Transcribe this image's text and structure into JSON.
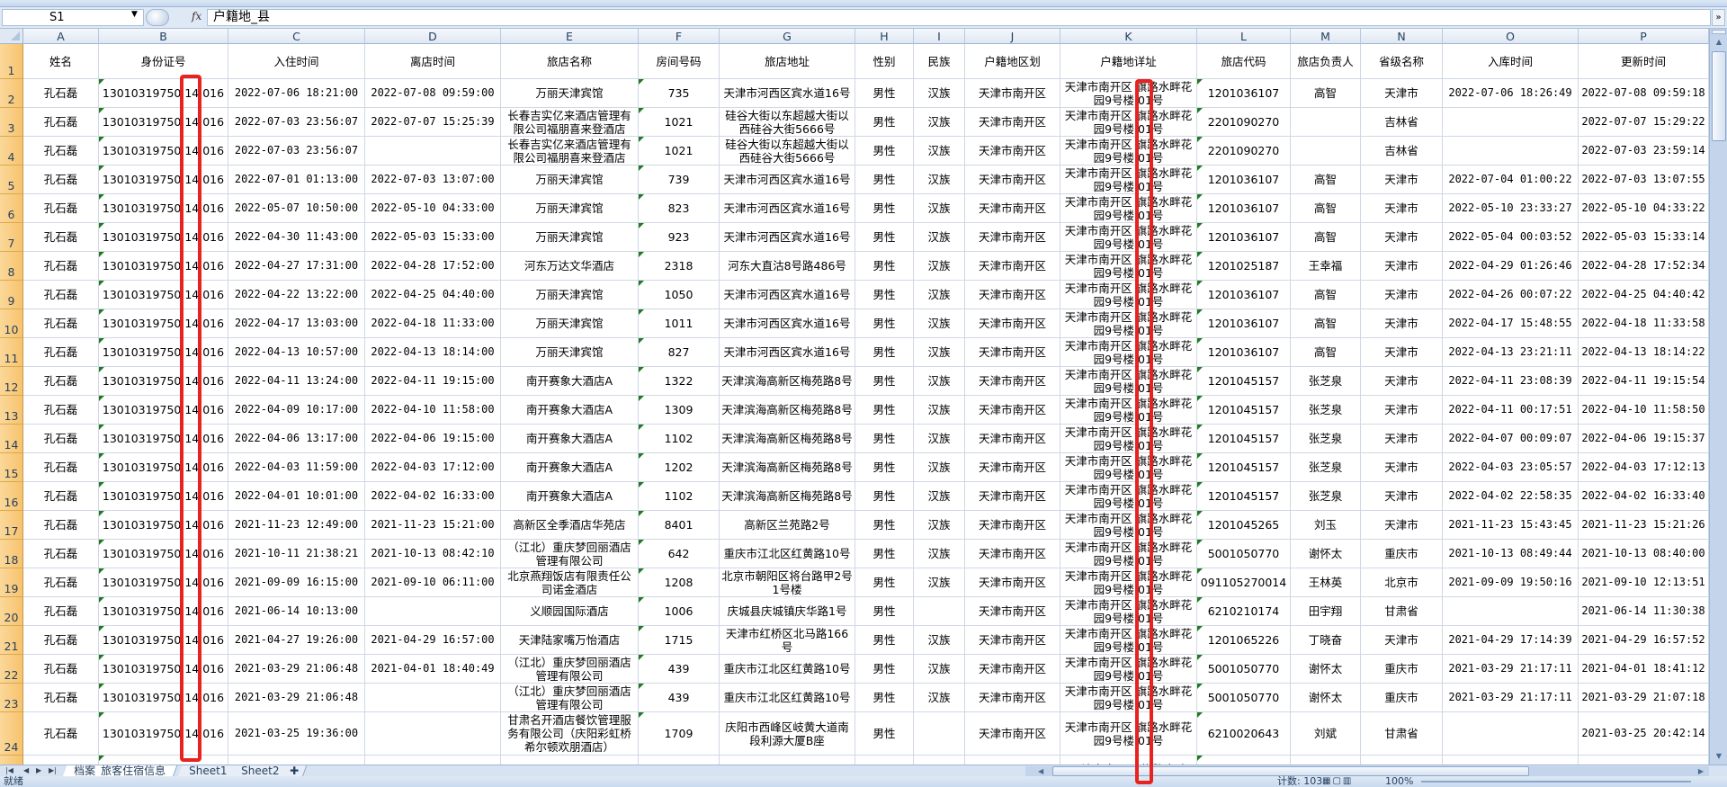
{
  "formula_bar": {
    "name_box": "S1",
    "fx_label": "fx",
    "formula": "户籍地_县",
    "expand_icon": "double-chevron-down-icon"
  },
  "columns": [
    "A",
    "B",
    "C",
    "D",
    "E",
    "F",
    "G",
    "H",
    "I",
    "J",
    "K",
    "L",
    "M",
    "N",
    "O",
    "P"
  ],
  "headers": [
    "姓名",
    "身份证号",
    "入住时间",
    "离店时间",
    "旅店名称",
    "房间号码",
    "旅店地址",
    "性别",
    "民族",
    "户籍地区划",
    "户籍地详址",
    "旅店代码",
    "旅店负责人",
    "省级名称",
    "入库时间",
    "更新时间"
  ],
  "rows": [
    [
      "孔石磊",
      "13010319750 14 016",
      "2022-07-06 18:21:00",
      "2022-07-08 09:59:00",
      "万丽天津宾馆",
      "735",
      "天津市河西区宾水道16号",
      "男性",
      "汉族",
      "天津市南开区",
      "天津市南开区 旗路水畔花园9号楼 01号",
      "1201036107",
      "高智",
      "天津市",
      "2022-07-06 18:26:49",
      "2022-07-08 09:59:18"
    ],
    [
      "孔石磊",
      "13010319750 14 016",
      "2022-07-03 23:56:07",
      "2022-07-07 15:25:39",
      "长春吉实亿来酒店管理有限公司福朋喜来登酒店",
      "1021",
      "硅谷大街以东超越大街以西硅谷大街5666号",
      "男性",
      "汉族",
      "天津市南开区",
      "天津市南开区 旗路水畔花园9号楼 01号",
      "2201090270",
      "",
      "吉林省",
      "",
      "2022-07-07 15:29:22"
    ],
    [
      "孔石磊",
      "13010319750 14 016",
      "2022-07-03 23:56:07",
      "",
      "长春吉实亿来酒店管理有限公司福朋喜来登酒店",
      "1021",
      "硅谷大街以东超越大街以西硅谷大街5666号",
      "男性",
      "汉族",
      "天津市南开区",
      "天津市南开区 旗路水畔花园9号楼 01号",
      "2201090270",
      "",
      "吉林省",
      "",
      "2022-07-03 23:59:14"
    ],
    [
      "孔石磊",
      "13010319750 14 016",
      "2022-07-01 01:13:00",
      "2022-07-03 13:07:00",
      "万丽天津宾馆",
      "739",
      "天津市河西区宾水道16号",
      "男性",
      "汉族",
      "天津市南开区",
      "天津市南开区 旗路水畔花园9号楼 01号",
      "1201036107",
      "高智",
      "天津市",
      "2022-07-04 01:00:22",
      "2022-07-03 13:07:55"
    ],
    [
      "孔石磊",
      "13010319750 14 016",
      "2022-05-07 10:50:00",
      "2022-05-10 04:33:00",
      "万丽天津宾馆",
      "823",
      "天津市河西区宾水道16号",
      "男性",
      "汉族",
      "天津市南开区",
      "天津市南开区 旗路水畔花园9号楼 01号",
      "1201036107",
      "高智",
      "天津市",
      "2022-05-10 23:33:27",
      "2022-05-10 04:33:22"
    ],
    [
      "孔石磊",
      "13010319750 14 016",
      "2022-04-30 11:43:00",
      "2022-05-03 15:33:00",
      "万丽天津宾馆",
      "923",
      "天津市河西区宾水道16号",
      "男性",
      "汉族",
      "天津市南开区",
      "天津市南开区 旗路水畔花园9号楼 01号",
      "1201036107",
      "高智",
      "天津市",
      "2022-05-04 00:03:52",
      "2022-05-03 15:33:14"
    ],
    [
      "孔石磊",
      "13010319750 14 016",
      "2022-04-27 17:31:00",
      "2022-04-28 17:52:00",
      "河东万达文华酒店",
      "2318",
      "河东大直沽8号路486号",
      "男性",
      "汉族",
      "天津市南开区",
      "天津市南开区 旗路水畔花园9号楼 01号",
      "1201025187",
      "王幸福",
      "天津市",
      "2022-04-29 01:26:46",
      "2022-04-28 17:52:34"
    ],
    [
      "孔石磊",
      "13010319750 14 016",
      "2022-04-22 13:22:00",
      "2022-04-25 04:40:00",
      "万丽天津宾馆",
      "1050",
      "天津市河西区宾水道16号",
      "男性",
      "汉族",
      "天津市南开区",
      "天津市南开区 旗路水畔花园9号楼 01号",
      "1201036107",
      "高智",
      "天津市",
      "2022-04-26 00:07:22",
      "2022-04-25 04:40:42"
    ],
    [
      "孔石磊",
      "13010319750 14 016",
      "2022-04-17 13:03:00",
      "2022-04-18 11:33:00",
      "万丽天津宾馆",
      "1011",
      "天津市河西区宾水道16号",
      "男性",
      "汉族",
      "天津市南开区",
      "天津市南开区 旗路水畔花园9号楼 01号",
      "1201036107",
      "高智",
      "天津市",
      "2022-04-17 15:48:55",
      "2022-04-18 11:33:58"
    ],
    [
      "孔石磊",
      "13010319750 14 016",
      "2022-04-13 10:57:00",
      "2022-04-13 18:14:00",
      "万丽天津宾馆",
      "827",
      "天津市河西区宾水道16号",
      "男性",
      "汉族",
      "天津市南开区",
      "天津市南开区 旗路水畔花园9号楼 01号",
      "1201036107",
      "高智",
      "天津市",
      "2022-04-13 23:21:11",
      "2022-04-13 18:14:22"
    ],
    [
      "孔石磊",
      "13010319750 14 016",
      "2022-04-11 13:24:00",
      "2022-04-11 19:15:00",
      "南开赛象大酒店A",
      "1322",
      "天津滨海高新区梅苑路8号",
      "男性",
      "汉族",
      "天津市南开区",
      "天津市南开区 旗路水畔花园9号楼 01号",
      "1201045157",
      "张芝泉",
      "天津市",
      "2022-04-11 23:08:39",
      "2022-04-11 19:15:54"
    ],
    [
      "孔石磊",
      "13010319750 14 016",
      "2022-04-09 10:17:00",
      "2022-04-10 11:58:00",
      "南开赛象大酒店A",
      "1309",
      "天津滨海高新区梅苑路8号",
      "男性",
      "汉族",
      "天津市南开区",
      "天津市南开区 旗路水畔花园9号楼 01号",
      "1201045157",
      "张芝泉",
      "天津市",
      "2022-04-11 00:17:51",
      "2022-04-10 11:58:50"
    ],
    [
      "孔石磊",
      "13010319750 14 016",
      "2022-04-06 13:17:00",
      "2022-04-06 19:15:00",
      "南开赛象大酒店A",
      "1102",
      "天津滨海高新区梅苑路8号",
      "男性",
      "汉族",
      "天津市南开区",
      "天津市南开区 旗路水畔花园9号楼 01号",
      "1201045157",
      "张芝泉",
      "天津市",
      "2022-04-07 00:09:07",
      "2022-04-06 19:15:37"
    ],
    [
      "孔石磊",
      "13010319750 14 016",
      "2022-04-03 11:59:00",
      "2022-04-03 17:12:00",
      "南开赛象大酒店A",
      "1202",
      "天津滨海高新区梅苑路8号",
      "男性",
      "汉族",
      "天津市南开区",
      "天津市南开区 旗路水畔花园9号楼 01号",
      "1201045157",
      "张芝泉",
      "天津市",
      "2022-04-03 23:05:57",
      "2022-04-03 17:12:13"
    ],
    [
      "孔石磊",
      "13010319750 14 016",
      "2022-04-01 10:01:00",
      "2022-04-02 16:33:00",
      "南开赛象大酒店A",
      "1102",
      "天津滨海高新区梅苑路8号",
      "男性",
      "汉族",
      "天津市南开区",
      "天津市南开区 旗路水畔花园9号楼 01号",
      "1201045157",
      "张芝泉",
      "天津市",
      "2022-04-02 22:58:35",
      "2022-04-02 16:33:40"
    ],
    [
      "孔石磊",
      "13010319750 14 016",
      "2021-11-23 12:49:00",
      "2021-11-23 15:21:00",
      "高新区全季酒店华苑店",
      "8401",
      "高新区兰苑路2号",
      "男性",
      "汉族",
      "天津市南开区",
      "天津市南开区 旗路水畔花园9号楼 01号",
      "1201045265",
      "刘玉",
      "天津市",
      "2021-11-23 15:43:45",
      "2021-11-23 15:21:26"
    ],
    [
      "孔石磊",
      "13010319750 14 016",
      "2021-10-11 21:38:21",
      "2021-10-13 08:42:10",
      "（江北）重庆梦回丽酒店管理有限公司",
      "642",
      "重庆市江北区红黄路10号",
      "男性",
      "汉族",
      "天津市南开区",
      "天津市南开区 旗路水畔花园9号楼 01号",
      "5001050770",
      "谢怀太",
      "重庆市",
      "2021-10-13 08:49:44",
      "2021-10-13 08:40:00"
    ],
    [
      "孔石磊",
      "13010319750 14 016",
      "2021-09-09 16:15:00",
      "2021-09-10 06:11:00",
      "北京燕翔饭店有限责任公司诺金酒店",
      "1208",
      "北京市朝阳区将台路甲2号1号楼",
      "男性",
      "汉族",
      "天津市南开区",
      "天津市南开区 旗路水畔花园9号楼 01号",
      "091105270014",
      "王林英",
      "北京市",
      "2021-09-09 19:50:16",
      "2021-09-10 12:13:51"
    ],
    [
      "孔石磊",
      "13010319750 14 016",
      "2021-06-14 10:13:00",
      "",
      "义顺园国际酒店",
      "1006",
      "庆城县庆城镇庆华路1号",
      "男性",
      "",
      "天津市南开区",
      "天津市南开区 旗路水畔花园9号楼 01号",
      "6210210174",
      "田宇翔",
      "甘肃省",
      "",
      "2021-06-14 11:30:38"
    ],
    [
      "孔石磊",
      "13010319750 14 016",
      "2021-04-27 19:26:00",
      "2021-04-29 16:57:00",
      "天津陆家嘴万怡酒店",
      "1715",
      "天津市红桥区北马路166号",
      "男性",
      "汉族",
      "天津市南开区",
      "天津市南开区 旗路水畔花园9号楼 01号",
      "1201065226",
      "丁晓奋",
      "天津市",
      "2021-04-29 17:14:39",
      "2021-04-29 16:57:52"
    ],
    [
      "孔石磊",
      "13010319750 14 016",
      "2021-03-29 21:06:48",
      "2021-04-01 18:40:49",
      "（江北）重庆梦回丽酒店管理有限公司",
      "439",
      "重庆市江北区红黄路10号",
      "男性",
      "汉族",
      "天津市南开区",
      "天津市南开区 旗路水畔花园9号楼 01号",
      "5001050770",
      "谢怀太",
      "重庆市",
      "2021-03-29 21:17:11",
      "2021-04-01 18:41:12"
    ],
    [
      "孔石磊",
      "13010319750 14 016",
      "2021-03-29 21:06:48",
      "",
      "（江北）重庆梦回丽酒店管理有限公司",
      "439",
      "重庆市江北区红黄路10号",
      "男性",
      "汉族",
      "天津市南开区",
      "天津市南开区 旗路水畔花园9号楼 01号",
      "5001050770",
      "谢怀太",
      "重庆市",
      "2021-03-29 21:17:11",
      "2021-03-29 21:07:18"
    ],
    [
      "孔石磊",
      "13010319750 14 016",
      "2021-03-25 19:36:00",
      "",
      "甘肃名开酒店餐饮管理服务有限公司（庆阳彩虹桥希尔顿欢朋酒店）",
      "1709",
      "庆阳市西峰区岐黄大道南段利源大厦B座",
      "男性",
      "",
      "天津市南开区",
      "天津市南开区 旗路水畔花园9号楼 01号",
      "6210020643",
      "刘斌",
      "甘肃省",
      "",
      "2021-03-25 20:42:14"
    ],
    [
      "",
      "",
      "",
      "",
      "",
      "",
      "",
      "",
      "",
      "",
      "天津市南开区 旗路水畔",
      "",
      "",
      "",
      "",
      ""
    ]
  ],
  "sheet_tabs": [
    {
      "label": "档案_旅客住宿信息",
      "active": true
    },
    {
      "label": "Sheet1",
      "active": false
    },
    {
      "label": "Sheet2",
      "active": false
    }
  ],
  "new_sheet_icon": "insert-sheet-icon",
  "status_bar": {
    "ready": "就绪",
    "count": "计数: 103",
    "zoom": "100%"
  },
  "colors": {
    "highlight": "#e8231f",
    "row_header": "#f7c36d",
    "text_flag": "#1f7a1f"
  }
}
